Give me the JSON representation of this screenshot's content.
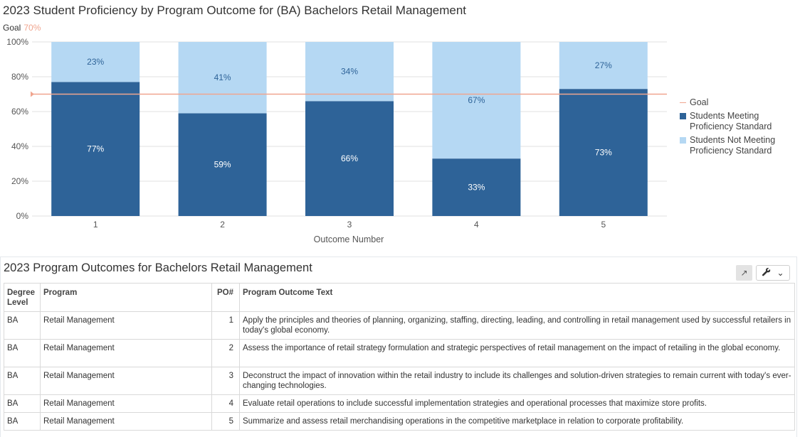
{
  "chart_title": "2023 Student Proficiency by Program Outcome for (BA) Bachelors Retail Management",
  "goal_label": "Goal",
  "goal_value_text": "70%",
  "colors": {
    "meeting": "#2e6398",
    "not_meeting": "#b5d8f3",
    "goal": "#f0a58f"
  },
  "chart_data": {
    "type": "bar",
    "stacked": true,
    "categories": [
      "1",
      "2",
      "3",
      "4",
      "5"
    ],
    "series": [
      {
        "name": "Students Meeting Proficiency Standard",
        "values": [
          77,
          59,
          66,
          33,
          73
        ],
        "labels": [
          "77%",
          "59%",
          "66%",
          "33%",
          "73%"
        ]
      },
      {
        "name": "Students Not Meeting Proficiency Standard",
        "values": [
          23,
          41,
          34,
          67,
          27
        ],
        "labels": [
          "23%",
          "41%",
          "34%",
          "67%",
          "27%"
        ]
      }
    ],
    "goal": {
      "name": "Goal",
      "value": 70
    },
    "xlabel": "Outcome Number",
    "ylabel": "",
    "ylim": [
      0,
      100
    ],
    "yticks": [
      "0%",
      "20%",
      "40%",
      "60%",
      "80%",
      "100%"
    ],
    "grid": true,
    "legend_position": "right"
  },
  "table": {
    "title": "2023 Program Outcomes for Bachelors Retail Management",
    "headers": {
      "degree": "Degree Level",
      "program": "Program",
      "po": "PO#",
      "text": "Program Outcome Text"
    },
    "rows": [
      {
        "degree": "BA",
        "program": "Retail Management",
        "po": "1",
        "text": "Apply the principles and theories of planning, organizing, staffing, directing, leading, and controlling in retail management used by successful retailers in today's global economy."
      },
      {
        "degree": "BA",
        "program": "Retail Management",
        "po": "2",
        "text": "Assess the importance of retail strategy formulation and strategic perspectives of retail management on the impact of retailing in the global economy."
      },
      {
        "degree": "BA",
        "program": "Retail Management",
        "po": "3",
        "text": "Deconstruct the impact of innovation within the retail industry to include its challenges and solution-driven strategies to remain current with today's ever-changing technologies."
      },
      {
        "degree": "BA",
        "program": "Retail Management",
        "po": "4",
        "text": "Evaluate retail operations to include successful implementation strategies and operational processes that maximize store profits."
      },
      {
        "degree": "BA",
        "program": "Retail Management",
        "po": "5",
        "text": "Summarize and assess retail merchandising operations in the competitive marketplace in relation to corporate profitability."
      }
    ]
  },
  "toolbar": {
    "expand_icon": "expand-icon",
    "wrench_icon": "wrench-icon",
    "dropdown_icon": "chevron-down-icon"
  }
}
